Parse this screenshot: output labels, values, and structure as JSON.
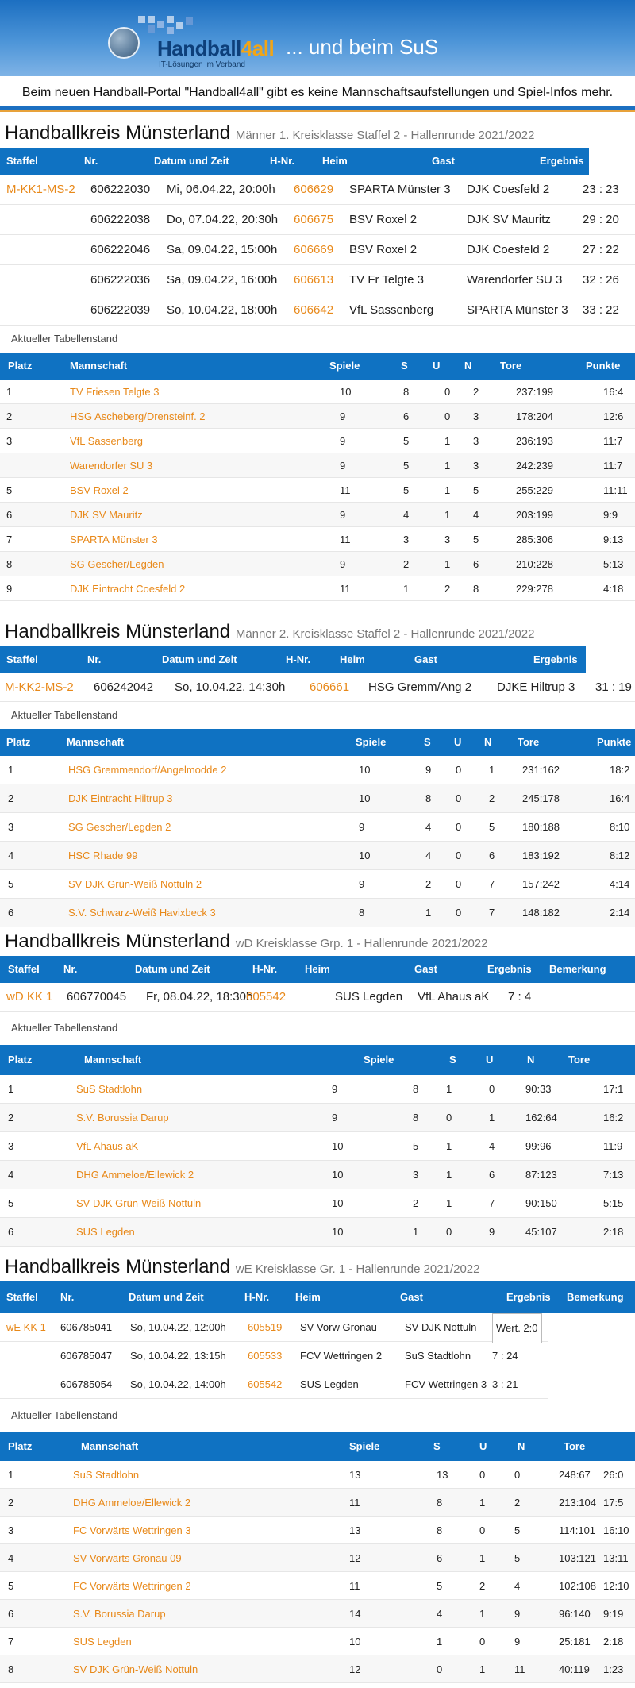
{
  "header": {
    "logo_name_a": "Handball",
    "logo_name_b": "4all",
    "logo_tagline": "IT-Lösungen im Verband",
    "subtitle": "... und beim SuS"
  },
  "notice": "Beim neuen Handball-Portal \"Handball4all\" gibt es keine Mannschaftsaufstellungen und Spiel-Infos mehr.",
  "sections": [
    {
      "title": "Handballkreis Münsterland",
      "subtitle": "Männer 1. Kreisklasse Staffel 2 - Hallenrunde 2021/2022",
      "games_header": [
        "Staffel",
        "Nr.",
        "Datum und Zeit",
        "H-Nr.",
        "Heim",
        "Gast",
        "Ergebnis"
      ],
      "games": [
        {
          "staffel": "M-KK1-MS-2",
          "nr": "606222030",
          "datum": "Mi, 06.04.22, 20:00h",
          "hnr": "606629",
          "heim": "SPARTA Münster 3",
          "gast": "DJK Coesfeld 2",
          "ergebnis": "23 : 23"
        },
        {
          "staffel": "",
          "nr": "606222038",
          "datum": "Do, 07.04.22, 20:30h",
          "hnr": "606675",
          "heim": "BSV Roxel 2",
          "gast": "DJK SV Mauritz",
          "ergebnis": "29 : 20"
        },
        {
          "staffel": "",
          "nr": "606222046",
          "datum": "Sa, 09.04.22, 15:00h",
          "hnr": "606669",
          "heim": "BSV Roxel 2",
          "gast": "DJK Coesfeld 2",
          "ergebnis": "27 : 22"
        },
        {
          "staffel": "",
          "nr": "606222036",
          "datum": "Sa, 09.04.22, 16:00h",
          "hnr": "606613",
          "heim": "TV Fr Telgte 3",
          "gast": "Warendorfer SU 3",
          "ergebnis": "32 : 26"
        },
        {
          "staffel": "",
          "nr": "606222039",
          "datum": "So, 10.04.22, 18:00h",
          "hnr": "606642",
          "heim": "VfL Sassenberg",
          "gast": "SPARTA Münster 3",
          "ergebnis": "33 : 22"
        }
      ],
      "table_label": "Aktueller Tabellenstand",
      "table_header": [
        "Platz",
        "Mannschaft",
        "Spiele",
        "S",
        "U",
        "N",
        "Tore",
        "Punkte"
      ],
      "table": [
        {
          "platz": "1",
          "team": "TV Friesen Telgte 3",
          "spiele": "10",
          "s": "8",
          "u": "0",
          "n": "2",
          "tore": "237:199",
          "punkte": "16:4"
        },
        {
          "platz": "2",
          "team": "HSG Ascheberg/Drensteinf. 2",
          "spiele": "9",
          "s": "6",
          "u": "0",
          "n": "3",
          "tore": "178:204",
          "punkte": "12:6"
        },
        {
          "platz": "3",
          "team": "VfL Sassenberg",
          "spiele": "9",
          "s": "5",
          "u": "1",
          "n": "3",
          "tore": "236:193",
          "punkte": "11:7"
        },
        {
          "platz": "",
          "team": "Warendorfer SU 3",
          "spiele": "9",
          "s": "5",
          "u": "1",
          "n": "3",
          "tore": "242:239",
          "punkte": "11:7"
        },
        {
          "platz": "5",
          "team": "BSV Roxel 2",
          "spiele": "11",
          "s": "5",
          "u": "1",
          "n": "5",
          "tore": "255:229",
          "punkte": "11:11"
        },
        {
          "platz": "6",
          "team": "DJK SV Mauritz",
          "spiele": "9",
          "s": "4",
          "u": "1",
          "n": "4",
          "tore": "203:199",
          "punkte": "9:9"
        },
        {
          "platz": "7",
          "team": "SPARTA Münster 3",
          "spiele": "11",
          "s": "3",
          "u": "3",
          "n": "5",
          "tore": "285:306",
          "punkte": "9:13"
        },
        {
          "platz": "8",
          "team": "SG Gescher/Legden",
          "spiele": "9",
          "s": "2",
          "u": "1",
          "n": "6",
          "tore": "210:228",
          "punkte": "5:13"
        },
        {
          "platz": "9",
          "team": "DJK Eintracht Coesfeld 2",
          "spiele": "11",
          "s": "1",
          "u": "2",
          "n": "8",
          "tore": "229:278",
          "punkte": "4:18"
        }
      ]
    },
    {
      "title": "Handballkreis Münsterland",
      "subtitle": "Männer 2. Kreisklasse Staffel 2 - Hallenrunde 2021/2022",
      "games_header": [
        "Staffel",
        "Nr.",
        "Datum und Zeit",
        "H-Nr.",
        "Heim",
        "Gast",
        "Ergebnis"
      ],
      "games": [
        {
          "staffel": "M-KK2-MS-2",
          "nr": "606242042",
          "datum": "So, 10.04.22, 14:30h",
          "hnr": "606661",
          "heim": "HSG Gremm/Ang 2",
          "gast": "DJKE Hiltrup 3",
          "ergebnis": "31 : 19"
        }
      ],
      "table_label": "Aktueller Tabellenstand",
      "table_header": [
        "Platz",
        "Mannschaft",
        "Spiele",
        "S",
        "U",
        "N",
        "Tore",
        "Punkte"
      ],
      "table": [
        {
          "platz": "1",
          "team": "HSG Gremmendorf/Angelmodde 2",
          "spiele": "10",
          "s": "9",
          "u": "0",
          "n": "1",
          "tore": "231:162",
          "punkte": "18:2"
        },
        {
          "platz": "2",
          "team": "DJK Eintracht Hiltrup 3",
          "spiele": "10",
          "s": "8",
          "u": "0",
          "n": "2",
          "tore": "245:178",
          "punkte": "16:4"
        },
        {
          "platz": "3",
          "team": "SG Gescher/Legden 2",
          "spiele": "9",
          "s": "4",
          "u": "0",
          "n": "5",
          "tore": "180:188",
          "punkte": "8:10"
        },
        {
          "platz": "4",
          "team": "HSC Rhade 99",
          "spiele": "10",
          "s": "4",
          "u": "0",
          "n": "6",
          "tore": "183:192",
          "punkte": "8:12"
        },
        {
          "platz": "5",
          "team": "SV DJK Grün-Weiß Nottuln 2",
          "spiele": "9",
          "s": "2",
          "u": "0",
          "n": "7",
          "tore": "157:242",
          "punkte": "4:14"
        },
        {
          "platz": "6",
          "team": "S.V. Schwarz-Weiß Havixbeck 3",
          "spiele": "8",
          "s": "1",
          "u": "0",
          "n": "7",
          "tore": "148:182",
          "punkte": "2:14"
        }
      ]
    },
    {
      "title": "Handballkreis Münsterland",
      "subtitle": "wD Kreisklasse Grp. 1 - Hallenrunde 2021/2022",
      "games_header": [
        "Staffel",
        "Nr.",
        "Datum und Zeit",
        "H-Nr.",
        "Heim",
        "Gast",
        "Ergebnis",
        "Bemerkung"
      ],
      "games": [
        {
          "staffel": "wD KK 1",
          "nr": "606770045",
          "datum": "Fr, 08.04.22, 18:30h",
          "hnr": "605542",
          "heim": "SUS Legden",
          "gast": "VfL Ahaus aK",
          "ergebnis": "7 : 4"
        }
      ],
      "table_label": "Aktueller Tabellenstand",
      "table_header": [
        "Platz",
        "Mannschaft",
        "Spiele",
        "S",
        "U",
        "N",
        "Tore"
      ],
      "table": [
        {
          "platz": "1",
          "team": "SuS Stadtlohn",
          "spiele": "9",
          "s": "8",
          "u": "1",
          "n": "0",
          "tore": "90:33",
          "punkte": "17:1"
        },
        {
          "platz": "2",
          "team": "S.V. Borussia Darup",
          "spiele": "9",
          "s": "8",
          "u": "0",
          "n": "1",
          "tore": "162:64",
          "punkte": "16:2"
        },
        {
          "platz": "3",
          "team": "VfL Ahaus aK",
          "spiele": "10",
          "s": "5",
          "u": "1",
          "n": "4",
          "tore": "99:96",
          "punkte": "11:9"
        },
        {
          "platz": "4",
          "team": "DHG Ammeloe/Ellewick 2",
          "spiele": "10",
          "s": "3",
          "u": "1",
          "n": "6",
          "tore": "87:123",
          "punkte": "7:13"
        },
        {
          "platz": "5",
          "team": "SV DJK Grün-Weiß Nottuln",
          "spiele": "10",
          "s": "2",
          "u": "1",
          "n": "7",
          "tore": "90:150",
          "punkte": "5:15"
        },
        {
          "platz": "6",
          "team": "SUS Legden",
          "spiele": "10",
          "s": "1",
          "u": "0",
          "n": "9",
          "tore": "45:107",
          "punkte": "2:18"
        }
      ]
    },
    {
      "title": "Handballkreis Münsterland",
      "subtitle": "wE Kreisklasse Gr. 1 - Hallenrunde 2021/2022",
      "games_header": [
        "Staffel",
        "Nr.",
        "Datum und Zeit",
        "H-Nr.",
        "Heim",
        "Gast",
        "Ergebnis",
        "Bemerkung"
      ],
      "games": [
        {
          "staffel": "wE KK 1",
          "nr": "606785041",
          "datum": "So, 10.04.22, 12:00h",
          "hnr": "605519",
          "heim": "SV Vorw Gronau",
          "gast": "SV DJK Nottuln",
          "ergebnis": "Wert. 2:0"
        },
        {
          "staffel": "",
          "nr": "606785047",
          "datum": "So, 10.04.22, 13:15h",
          "hnr": "605533",
          "heim": "FCV Wettringen 2",
          "gast": "SuS Stadtlohn",
          "ergebnis": "7 : 24"
        },
        {
          "staffel": "",
          "nr": "606785054",
          "datum": "So, 10.04.22, 14:00h",
          "hnr": "605542",
          "heim": "SUS Legden",
          "gast": "FCV Wettringen 3",
          "ergebnis": "3 : 21"
        }
      ],
      "table_label": "Aktueller Tabellenstand",
      "table_header": [
        "Platz",
        "Mannschaft",
        "Spiele",
        "S",
        "U",
        "N",
        "Tore"
      ],
      "table": [
        {
          "platz": "1",
          "team": "SuS Stadtlohn",
          "spiele": "13",
          "s": "13",
          "u": "0",
          "n": "0",
          "tore": "248:67",
          "punkte": "26:0"
        },
        {
          "platz": "2",
          "team": "DHG Ammeloe/Ellewick 2",
          "spiele": "11",
          "s": "8",
          "u": "1",
          "n": "2",
          "tore": "213:104",
          "punkte": "17:5"
        },
        {
          "platz": "3",
          "team": "FC Vorwärts Wettringen 3",
          "spiele": "13",
          "s": "8",
          "u": "0",
          "n": "5",
          "tore": "114:101",
          "punkte": "16:10"
        },
        {
          "platz": "4",
          "team": "SV Vorwärts Gronau 09",
          "spiele": "12",
          "s": "6",
          "u": "1",
          "n": "5",
          "tore": "103:121",
          "punkte": "13:11"
        },
        {
          "platz": "5",
          "team": "FC Vorwärts Wettringen 2",
          "spiele": "11",
          "s": "5",
          "u": "2",
          "n": "4",
          "tore": "102:108",
          "punkte": "12:10"
        },
        {
          "platz": "6",
          "team": "S.V. Borussia Darup",
          "spiele": "14",
          "s": "4",
          "u": "1",
          "n": "9",
          "tore": "96:140",
          "punkte": "9:19"
        },
        {
          "platz": "7",
          "team": "SUS Legden",
          "spiele": "10",
          "s": "1",
          "u": "0",
          "n": "9",
          "tore": "25:181",
          "punkte": "2:18"
        },
        {
          "platz": "8",
          "team": "SV DJK Grün-Weiß Nottuln",
          "spiele": "12",
          "s": "0",
          "u": "1",
          "n": "11",
          "tore": "40:119",
          "punkte": "1:23"
        }
      ]
    }
  ]
}
